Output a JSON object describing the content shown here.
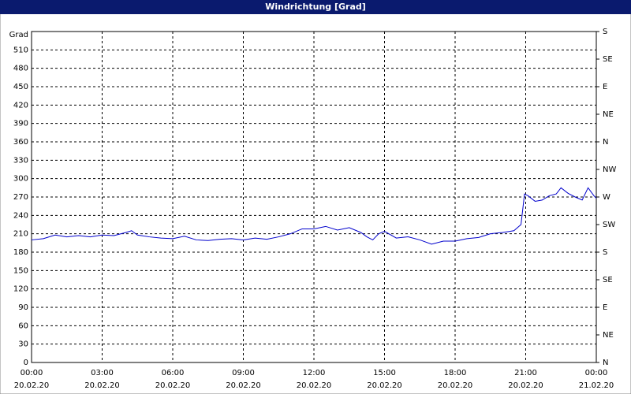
{
  "chart_data": {
    "type": "line",
    "title": "Windrichtung [Grad]",
    "y_label": "Grad",
    "color": "#0000cc",
    "grid": true,
    "xlim": [
      0,
      24
    ],
    "xticks": [
      {
        "value": 0,
        "label": "00:00"
      },
      {
        "value": 3,
        "label": "03:00"
      },
      {
        "value": 6,
        "label": "06:00"
      },
      {
        "value": 9,
        "label": "09:00"
      },
      {
        "value": 12,
        "label": "12:00"
      },
      {
        "value": 15,
        "label": "15:00"
      },
      {
        "value": 18,
        "label": "18:00"
      },
      {
        "value": 21,
        "label": "21:00"
      },
      {
        "value": 24,
        "label": "00:00"
      }
    ],
    "xtick_dates": [
      "20.02.20",
      "20.02.20",
      "20.02.20",
      "20.02.20",
      "20.02.20",
      "20.02.20",
      "20.02.20",
      "20.02.20",
      "21.02.20"
    ],
    "ylim": [
      0,
      540
    ],
    "yticks": [
      0,
      30,
      60,
      90,
      120,
      150,
      180,
      210,
      240,
      270,
      300,
      330,
      360,
      390,
      420,
      450,
      480,
      510
    ],
    "y2lim": [
      0,
      540
    ],
    "y2ticks": [
      {
        "value": 0,
        "label": "N"
      },
      {
        "value": 45,
        "label": "NE"
      },
      {
        "value": 90,
        "label": "E"
      },
      {
        "value": 135,
        "label": "SE"
      },
      {
        "value": 180,
        "label": "S"
      },
      {
        "value": 225,
        "label": "SW"
      },
      {
        "value": 270,
        "label": "W"
      },
      {
        "value": 315,
        "label": "NW"
      },
      {
        "value": 360,
        "label": "N"
      },
      {
        "value": 405,
        "label": "NE"
      },
      {
        "value": 450,
        "label": "E"
      },
      {
        "value": 495,
        "label": "SE"
      },
      {
        "value": 540,
        "label": "S"
      }
    ],
    "x": [
      0,
      0.5,
      1,
      1.5,
      2,
      2.5,
      3,
      3.5,
      4,
      4.25,
      4.5,
      5,
      5.5,
      6,
      6.5,
      7,
      7.5,
      8,
      8.5,
      9,
      9.5,
      10,
      10.5,
      11,
      11.5,
      12,
      12.5,
      13,
      13.5,
      14,
      14.25,
      14.5,
      14.75,
      15,
      15.5,
      16,
      16.5,
      17,
      17.5,
      18,
      18.5,
      19,
      19.5,
      20,
      20.5,
      20.8,
      20.95,
      21.1,
      21.4,
      21.7,
      22,
      22.3,
      22.5,
      22.8,
      23.1,
      23.4,
      23.65,
      23.9,
      24
    ],
    "values": [
      200,
      202,
      208,
      205,
      207,
      205,
      208,
      207,
      212,
      215,
      208,
      205,
      203,
      202,
      206,
      200,
      199,
      201,
      202,
      200,
      203,
      201,
      205,
      210,
      218,
      218,
      222,
      216,
      220,
      212,
      205,
      200,
      210,
      214,
      203,
      205,
      200,
      193,
      198,
      198,
      202,
      204,
      210,
      212,
      215,
      225,
      275,
      272,
      263,
      265,
      272,
      275,
      285,
      276,
      270,
      265,
      285,
      272,
      268
    ]
  }
}
